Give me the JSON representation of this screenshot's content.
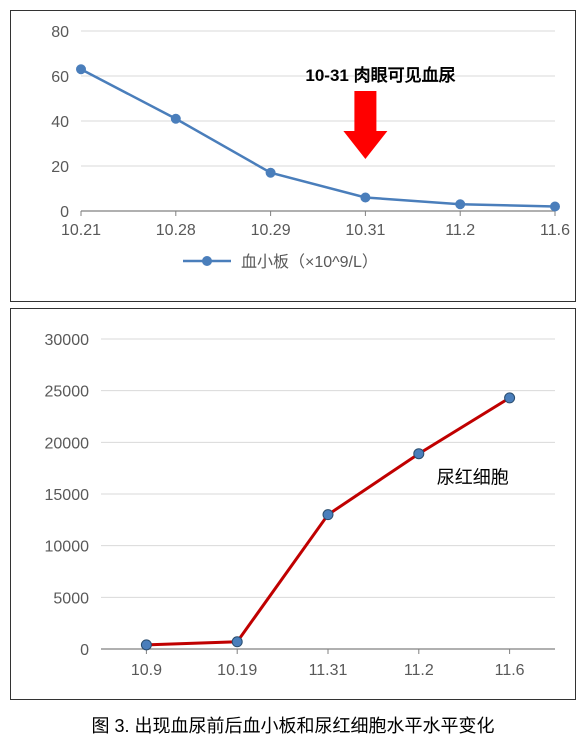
{
  "chart1": {
    "type": "line",
    "categories": [
      "10.21",
      "10.28",
      "10.29",
      "10.31",
      "11.2",
      "11.6"
    ],
    "values": [
      63,
      41,
      17,
      6,
      3,
      2
    ],
    "yticks": [
      0,
      20,
      40,
      60,
      80
    ],
    "ymin": 0,
    "ymax": 80,
    "line_color": "#4a7ebb",
    "marker_color": "#4a7ebb",
    "marker_radius": 5,
    "line_width": 2.5,
    "grid_color": "#d9d9d9",
    "axis_color": "#808080",
    "tick_font_size": 16,
    "label_color": "#595959",
    "legend_label": "血小板（×10^9/L）",
    "legend_font_size": 16,
    "annotation": {
      "text": "10-31 肉眼可见血尿",
      "font_size": 17,
      "font_weight": "bold",
      "color": "#000000",
      "arrow_fill": "#ff0000",
      "target_index": 3
    }
  },
  "chart2": {
    "type": "line",
    "categories": [
      "10.9",
      "10.19",
      "11.31",
      "11.2",
      "11.6"
    ],
    "values": [
      400,
      700,
      13000,
      18900,
      24300
    ],
    "yticks": [
      0,
      5000,
      10000,
      15000,
      20000,
      25000,
      30000
    ],
    "ymin": 0,
    "ymax": 30000,
    "line_color": "#c00000",
    "marker_color": "#4a7ebb",
    "marker_stroke": "#2a4d6e",
    "marker_radius": 5,
    "line_width": 3,
    "grid_color": "#d9d9d9",
    "axis_color": "#808080",
    "tick_font_size": 16,
    "label_color": "#595959",
    "series_label": {
      "text": "尿红细胞",
      "font_size": 18,
      "color": "#000000",
      "near_index": 3
    }
  },
  "caption": "图 3. 出现血尿前后血小板和尿红细胞水平水平变化",
  "caption_font_size": 18
}
